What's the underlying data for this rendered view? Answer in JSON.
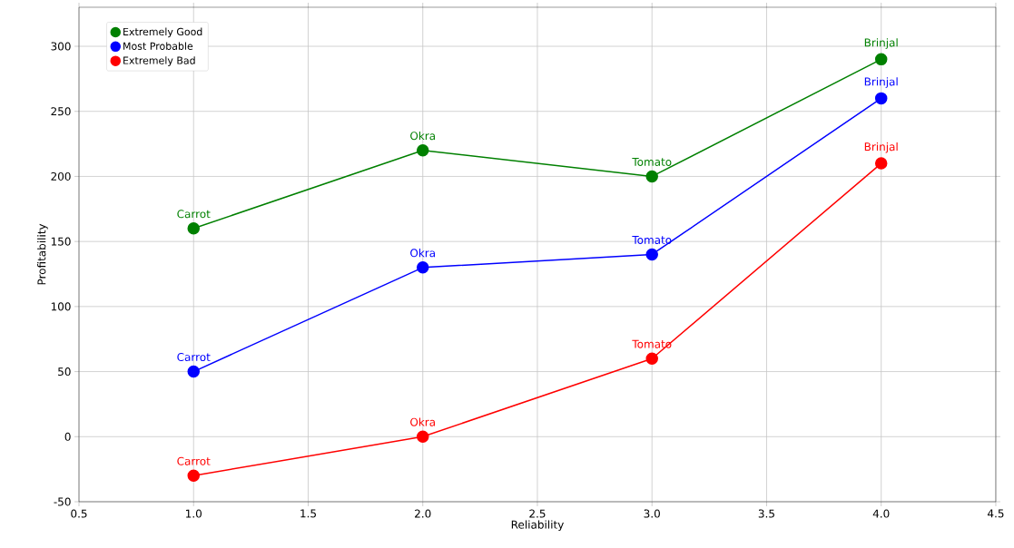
{
  "chart_data": {
    "type": "line",
    "xlabel": "Reliability",
    "ylabel": "Profitability",
    "x": [
      1,
      2,
      3,
      4
    ],
    "series": [
      {
        "name": "Extremely Good",
        "color": "#008000",
        "values": [
          160,
          220,
          200,
          290
        ],
        "value_labels": [
          "Carrot",
          "Okra",
          "Tomato",
          "Brinjal"
        ]
      },
      {
        "name": "Most Probable",
        "color": "#0000ff",
        "values": [
          50,
          130,
          140,
          260
        ],
        "value_labels": [
          "Carrot",
          "Okra",
          "Tomato",
          "Brinjal"
        ]
      },
      {
        "name": "Extremely Bad",
        "color": "#ff0000",
        "values": [
          -30,
          0,
          60,
          210
        ],
        "value_labels": [
          "Carrot",
          "Okra",
          "Tomato",
          "Brinjal"
        ]
      }
    ],
    "xlim": [
      0.5,
      4.5
    ],
    "ylim": [
      -50,
      330
    ],
    "xticks": [
      {
        "value": 0.5,
        "label": "0.5"
      },
      {
        "value": 1,
        "label": "1.0"
      },
      {
        "value": 1.5,
        "label": "1.5"
      },
      {
        "value": 2,
        "label": "2.0"
      },
      {
        "value": 2.5,
        "label": "2.5"
      },
      {
        "value": 3,
        "label": "3.0"
      },
      {
        "value": 3.5,
        "label": "3.5"
      },
      {
        "value": 4,
        "label": "4.0"
      },
      {
        "value": 4.5,
        "label": "4.5"
      }
    ],
    "yticks": [
      -50,
      0,
      50,
      100,
      150,
      200,
      250,
      300
    ],
    "grid": true,
    "legend": "top left",
    "marker": "circle",
    "line_style": "solid"
  }
}
